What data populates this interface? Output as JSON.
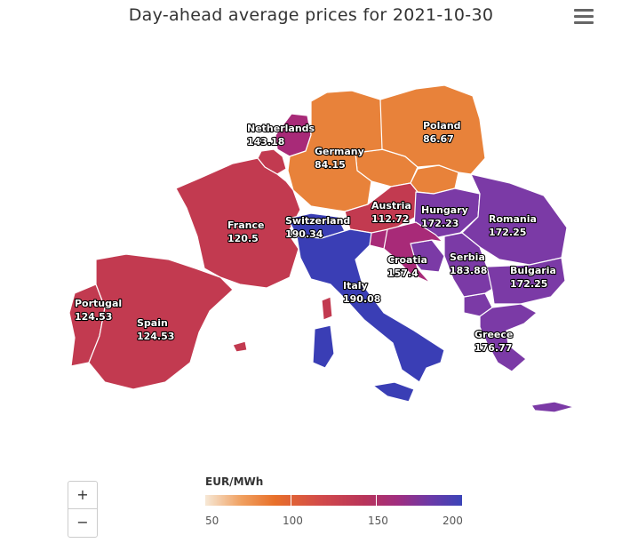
{
  "title": "Day-ahead average prices for 2021-10-30",
  "menu": {
    "icon": "hamburger-menu-icon"
  },
  "zoom": {
    "in_label": "+",
    "out_label": "−"
  },
  "legend": {
    "title": "EUR/MWh",
    "ticks": [
      "50",
      "100",
      "150",
      "200"
    ]
  },
  "colors": {
    "low": "#f6e8d6",
    "orange": "#e8823a",
    "red": "#c23a50",
    "magenta": "#a82a78",
    "purple": "#7b3aa6",
    "blue": "#3a3eb5"
  },
  "regions": {
    "netherlands": {
      "name": "Netherlands",
      "value": "143.18"
    },
    "germany": {
      "name": "Germany",
      "value": "84.15"
    },
    "poland": {
      "name": "Poland",
      "value": "86.67"
    },
    "france": {
      "name": "France",
      "value": "120.5"
    },
    "switzerland": {
      "name": "Switzerland",
      "value": "190.34"
    },
    "austria": {
      "name": "Austria",
      "value": "112.72"
    },
    "hungary": {
      "name": "Hungary",
      "value": "172.23"
    },
    "romania": {
      "name": "Romania",
      "value": "172.25"
    },
    "croatia": {
      "name": "Croatia",
      "value": "157.4"
    },
    "serbia": {
      "name": "Serbia",
      "value": "183.88"
    },
    "bulgaria": {
      "name": "Bulgaria",
      "value": "172.25"
    },
    "italy": {
      "name": "Italy",
      "value": "190.08"
    },
    "portugal": {
      "name": "Portugal",
      "value": "124.53"
    },
    "spain": {
      "name": "Spain",
      "value": "124.53"
    },
    "greece": {
      "name": "Greece",
      "value": "176.77"
    }
  }
}
